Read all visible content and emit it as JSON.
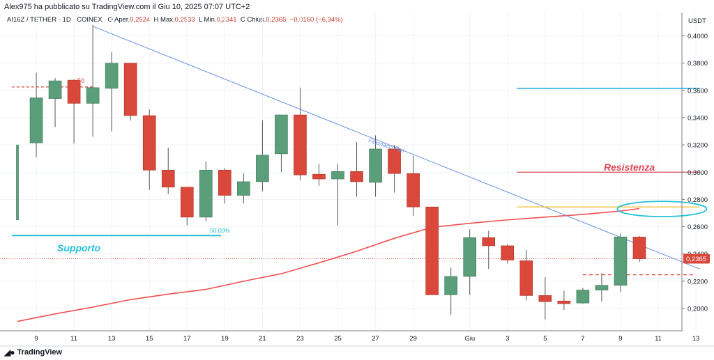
{
  "header": {
    "published_by": "Alex975 ha pubblicato su TradingView.com il Giu 10, 2025 07:07 UTC+2",
    "symbol": "AI16Z / TETHER · 1D · COINEX",
    "open_label": "O",
    "open_text": "Aper.",
    "open_value": "0,2524",
    "high_label": "H",
    "high_text": "Max.",
    "high_value": "0,2533",
    "low_label": "L",
    "low_text": "Min.",
    "low_value": "0,2341",
    "close_label": "C",
    "close_text": "Chius.",
    "close_value": "0,2365",
    "change_value": "−0,0160 (−6,34%)"
  },
  "footer": {
    "logo_text": "TradingView"
  },
  "colors": {
    "up": "#5b9e7a",
    "down": "#d9483b",
    "trend": "#6a8fe0",
    "ma": "#ef4f4f",
    "support": "#22c1d6",
    "resistance_top": "#1ea7e0",
    "resistance": "#d94a5a",
    "yellow": "#f3c13a"
  },
  "chart_data": {
    "type": "candlestick",
    "currency": "USDT",
    "y_range": [
      0.19,
      0.414
    ],
    "y_ticks": [
      "0,4000",
      "0,3800",
      "0,3600",
      "0,3400",
      "0,3200",
      "0,3000",
      "0,2800",
      "0,2600",
      "0,2400",
      "0,2200",
      "0,2000"
    ],
    "y_tick_values": [
      0.4,
      0.38,
      0.36,
      0.34,
      0.32,
      0.3,
      0.28,
      0.26,
      0.24,
      0.22,
      0.2
    ],
    "x_ticks": [
      {
        "label": "9",
        "i": 1
      },
      {
        "label": "11",
        "i": 3
      },
      {
        "label": "13",
        "i": 5
      },
      {
        "label": "15",
        "i": 7
      },
      {
        "label": "17",
        "i": 9
      },
      {
        "label": "19",
        "i": 11
      },
      {
        "label": "21",
        "i": 13
      },
      {
        "label": "23",
        "i": 15
      },
      {
        "label": "25",
        "i": 17
      },
      {
        "label": "27",
        "i": 19
      },
      {
        "label": "29",
        "i": 21
      },
      {
        "label": "Giu",
        "i": 24
      },
      {
        "label": "3",
        "i": 26
      },
      {
        "label": "5",
        "i": 28
      },
      {
        "label": "7",
        "i": 30
      },
      {
        "label": "9",
        "i": 32
      },
      {
        "label": "11",
        "i": 34
      },
      {
        "label": "13",
        "i": 36
      }
    ],
    "candles": [
      {
        "i": 0,
        "o": 0.265,
        "h": 0.32,
        "l": 0.265,
        "c": 0.32
      },
      {
        "i": 1,
        "o": 0.3215,
        "h": 0.373,
        "l": 0.311,
        "c": 0.3545
      },
      {
        "i": 2,
        "o": 0.354,
        "h": 0.369,
        "l": 0.333,
        "c": 0.367
      },
      {
        "i": 3,
        "o": 0.3675,
        "h": 0.368,
        "l": 0.321,
        "c": 0.3505
      },
      {
        "i": 4,
        "o": 0.3505,
        "h": 0.408,
        "l": 0.326,
        "c": 0.362
      },
      {
        "i": 5,
        "o": 0.3615,
        "h": 0.388,
        "l": 0.33,
        "c": 0.38
      },
      {
        "i": 6,
        "o": 0.38,
        "h": 0.38,
        "l": 0.338,
        "c": 0.3415
      },
      {
        "i": 7,
        "o": 0.3415,
        "h": 0.346,
        "l": 0.287,
        "c": 0.3015
      },
      {
        "i": 8,
        "o": 0.3015,
        "h": 0.318,
        "l": 0.284,
        "c": 0.289
      },
      {
        "i": 9,
        "o": 0.289,
        "h": 0.289,
        "l": 0.261,
        "c": 0.267
      },
      {
        "i": 10,
        "o": 0.267,
        "h": 0.308,
        "l": 0.264,
        "c": 0.3015
      },
      {
        "i": 11,
        "o": 0.3015,
        "h": 0.303,
        "l": 0.277,
        "c": 0.283
      },
      {
        "i": 12,
        "o": 0.283,
        "h": 0.299,
        "l": 0.277,
        "c": 0.293
      },
      {
        "i": 13,
        "o": 0.293,
        "h": 0.338,
        "l": 0.286,
        "c": 0.3125
      },
      {
        "i": 14,
        "o": 0.3135,
        "h": 0.342,
        "l": 0.3,
        "c": 0.342
      },
      {
        "i": 15,
        "o": 0.342,
        "h": 0.362,
        "l": 0.294,
        "c": 0.298
      },
      {
        "i": 16,
        "o": 0.2985,
        "h": 0.306,
        "l": 0.29,
        "c": 0.295
      },
      {
        "i": 17,
        "o": 0.295,
        "h": 0.306,
        "l": 0.261,
        "c": 0.3005
      },
      {
        "i": 18,
        "o": 0.3005,
        "h": 0.322,
        "l": 0.282,
        "c": 0.293
      },
      {
        "i": 19,
        "o": 0.2925,
        "h": 0.327,
        "l": 0.282,
        "c": 0.317
      },
      {
        "i": 20,
        "o": 0.317,
        "h": 0.32,
        "l": 0.285,
        "c": 0.299
      },
      {
        "i": 21,
        "o": 0.299,
        "h": 0.312,
        "l": 0.268,
        "c": 0.2745
      },
      {
        "i": 22,
        "o": 0.2745,
        "h": 0.2745,
        "l": 0.21,
        "c": 0.21
      },
      {
        "i": 23,
        "o": 0.21,
        "h": 0.23,
        "l": 0.1955,
        "c": 0.2235
      },
      {
        "i": 24,
        "o": 0.2235,
        "h": 0.258,
        "l": 0.21,
        "c": 0.252
      },
      {
        "i": 25,
        "o": 0.252,
        "h": 0.257,
        "l": 0.229,
        "c": 0.246
      },
      {
        "i": 26,
        "o": 0.246,
        "h": 0.247,
        "l": 0.233,
        "c": 0.2355
      },
      {
        "i": 27,
        "o": 0.235,
        "h": 0.243,
        "l": 0.206,
        "c": 0.2095
      },
      {
        "i": 28,
        "o": 0.2095,
        "h": 0.223,
        "l": 0.192,
        "c": 0.205
      },
      {
        "i": 29,
        "o": 0.2055,
        "h": 0.213,
        "l": 0.199,
        "c": 0.2035
      },
      {
        "i": 30,
        "o": 0.204,
        "h": 0.215,
        "l": 0.2035,
        "c": 0.2135
      },
      {
        "i": 31,
        "o": 0.2135,
        "h": 0.226,
        "l": 0.205,
        "c": 0.217
      },
      {
        "i": 32,
        "o": 0.217,
        "h": 0.255,
        "l": 0.212,
        "c": 0.2525
      },
      {
        "i": 33,
        "o": 0.2524,
        "h": 0.2533,
        "l": 0.2341,
        "c": 0.2365
      }
    ],
    "moving_average": [
      {
        "i": 0,
        "v": 0.1905
      },
      {
        "i": 2,
        "v": 0.196
      },
      {
        "i": 4,
        "v": 0.201
      },
      {
        "i": 6,
        "v": 0.2065
      },
      {
        "i": 8,
        "v": 0.2105
      },
      {
        "i": 10,
        "v": 0.214
      },
      {
        "i": 12,
        "v": 0.22
      },
      {
        "i": 14,
        "v": 0.2255
      },
      {
        "i": 16,
        "v": 0.2335
      },
      {
        "i": 18,
        "v": 0.242
      },
      {
        "i": 20,
        "v": 0.2515
      },
      {
        "i": 22,
        "v": 0.2595
      },
      {
        "i": 24,
        "v": 0.2625
      },
      {
        "i": 26,
        "v": 0.265
      },
      {
        "i": 28,
        "v": 0.267
      },
      {
        "i": 30,
        "v": 0.269
      },
      {
        "i": 32,
        "v": 0.2715
      },
      {
        "i": 33,
        "v": 0.2733
      }
    ],
    "trendline": {
      "from": {
        "i": 4,
        "v": 0.407
      },
      "to": {
        "i": 36.2,
        "v": 0.229
      },
      "label": "Fibonacci Fan"
    },
    "support": {
      "value": 0.2535,
      "from_i": -0.3,
      "to_i": 10.8,
      "label": "Supporto",
      "level_label": "50,00%"
    },
    "resistance_top": {
      "value": 0.3615,
      "from_i": 26.5,
      "to_i": 36.2
    },
    "resistance": {
      "value": 0.3,
      "from_i": 26.5,
      "to_i": 36.2,
      "label": "Resistenza"
    },
    "yellow_line": {
      "value": 0.2745,
      "from_i": 26.5,
      "to_i": 36.2
    },
    "prev_level": {
      "value": 0.3625,
      "from_i": -0.3,
      "to_i": 4.0,
      "label": "50"
    },
    "dashed_level": {
      "value": 0.2247,
      "from_i": 30.0,
      "to_i": 36.0
    },
    "last_price": {
      "value": 0.2365,
      "label": "0,2365"
    },
    "ellipse_center": {
      "i": 34.2,
      "v": 0.273
    }
  }
}
